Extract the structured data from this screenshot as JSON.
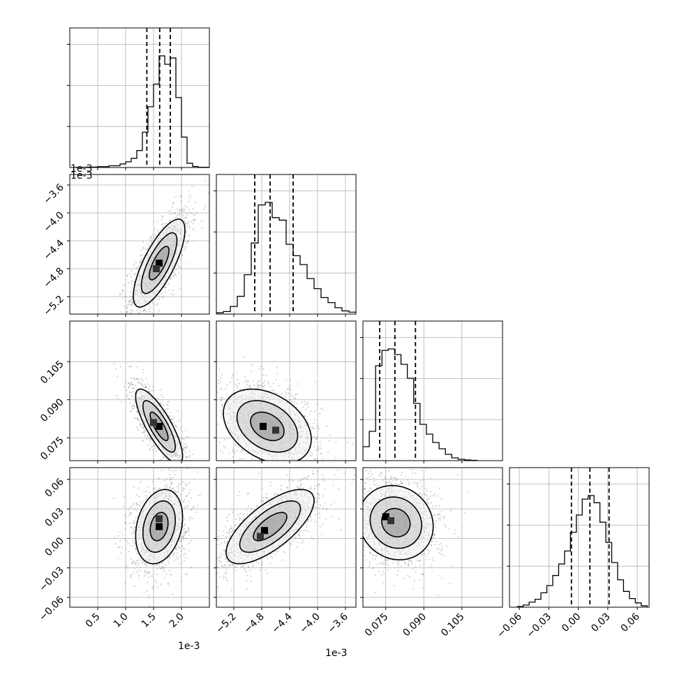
{
  "chart_data": {
    "type": "corner",
    "offset_labels": {
      "p0_hist": "1e-3",
      "p0_x": "1e-3",
      "p1_y": "1e-3",
      "p1_x": "1e-3"
    },
    "parameters": [
      {
        "range": [
          0.0002,
          2.5
        ],
        "ticks": [
          0.5,
          1.0,
          1.5,
          2.0
        ],
        "tick_labels": [
          "0.5",
          "1.0",
          "1.5",
          "2.0"
        ],
        "quantiles": [
          1.38,
          1.61,
          1.8
        ],
        "bin_edges": [
          0.1,
          0.3,
          0.5,
          0.7,
          0.9,
          1.0,
          1.1,
          1.2,
          1.3,
          1.4,
          1.5,
          1.6,
          1.7,
          1.8,
          1.9,
          2.0,
          2.1,
          2.2,
          2.3,
          2.5
        ],
        "hist": [
          0.2,
          0.6,
          1.2,
          2.5,
          5,
          8,
          13,
          24,
          50,
          86,
          118,
          158,
          146,
          155,
          99,
          43,
          6,
          1.5,
          0.3
        ]
      },
      {
        "range": [
          -5.45,
          -3.45
        ],
        "ticks": [
          -5.2,
          -4.8,
          -4.4,
          -4.0,
          -3.6
        ],
        "tick_labels": [
          "−5.2",
          "−4.8",
          "−4.4",
          "−4.0",
          "−3.6"
        ],
        "quantiles": [
          -4.9,
          -4.68,
          -4.35
        ],
        "bin_edges": [
          -5.45,
          -5.35,
          -5.25,
          -5.15,
          -5.05,
          -4.95,
          -4.85,
          -4.75,
          -4.65,
          -4.55,
          -4.45,
          -4.35,
          -4.25,
          -4.15,
          -4.05,
          -3.95,
          -3.85,
          -3.75,
          -3.65,
          -3.55,
          -3.45
        ],
        "hist": [
          2,
          4,
          12,
          28,
          62,
          112,
          172,
          176,
          152,
          148,
          110,
          92,
          78,
          56,
          40,
          26,
          18,
          10,
          5,
          3
        ]
      },
      {
        "range": [
          0.066,
          0.121
        ],
        "ticks": [
          0.075,
          0.09,
          0.105
        ],
        "tick_labels": [
          "0.075",
          "0.090",
          "0.105"
        ],
        "quantiles": [
          0.0726,
          0.0786,
          0.0867
        ],
        "bin_edges": [
          0.066,
          0.0685,
          0.071,
          0.0735,
          0.076,
          0.0785,
          0.081,
          0.0835,
          0.086,
          0.0885,
          0.091,
          0.0935,
          0.096,
          0.0985,
          0.101,
          0.1035,
          0.106,
          0.1085,
          0.111
        ],
        "hist": [
          20,
          42,
          136,
          158,
          160,
          152,
          138,
          118,
          82,
          52,
          38,
          26,
          17,
          9,
          4,
          2,
          1,
          0.5
        ]
      },
      {
        "range": [
          -0.07,
          0.072
        ],
        "ticks": [
          -0.06,
          -0.03,
          0.0,
          0.03,
          0.06
        ],
        "tick_labels": [
          "−0.06",
          "−0.03",
          "0.00",
          "0.03",
          "0.06"
        ],
        "quantiles": [
          -0.007,
          0.0118,
          0.0313
        ],
        "bin_edges": [
          -0.062,
          -0.056,
          -0.05,
          -0.044,
          -0.038,
          -0.032,
          -0.026,
          -0.02,
          -0.014,
          -0.008,
          -0.002,
          0.004,
          0.01,
          0.016,
          0.022,
          0.028,
          0.034,
          0.04,
          0.046,
          0.052,
          0.058,
          0.064,
          0.07
        ],
        "hist": [
          1,
          3,
          7,
          11,
          20,
          30,
          44,
          60,
          78,
          104,
          128,
          150,
          155,
          145,
          118,
          90,
          62,
          38,
          22,
          12,
          6,
          2
        ]
      }
    ],
    "pairs": [
      {
        "row": 1,
        "col": 0,
        "center": [
          1.6,
          -4.72
        ],
        "sd": [
          0.22,
          0.3
        ],
        "rho": 0.75,
        "dense_cells": [
          [
            1.6,
            -4.72
          ],
          [
            1.55,
            -4.8
          ]
        ]
      },
      {
        "row": 2,
        "col": 0,
        "center": [
          1.6,
          0.0795
        ],
        "sd": [
          0.2,
          0.007
        ],
        "rho": -0.8,
        "dense_cells": [
          [
            1.6,
            0.0795
          ],
          [
            1.5,
            0.081
          ]
        ]
      },
      {
        "row": 2,
        "col": 1,
        "center": [
          -4.72,
          0.0795
        ],
        "sd": [
          0.3,
          0.007
        ],
        "rho": -0.35,
        "dense_cells": [
          [
            -4.78,
            0.0795
          ],
          [
            -4.6,
            0.078
          ]
        ]
      },
      {
        "row": 3,
        "col": 0,
        "center": [
          1.6,
          0.012
        ],
        "sd": [
          0.2,
          0.018
        ],
        "rho": 0.25,
        "dense_cells": [
          [
            1.6,
            0.012
          ],
          [
            1.6,
            0.02
          ]
        ]
      },
      {
        "row": 3,
        "col": 1,
        "center": [
          -4.68,
          0.012
        ],
        "sd": [
          0.3,
          0.018
        ],
        "rho": 0.7,
        "dense_cells": [
          [
            -4.76,
            0.008
          ],
          [
            -4.82,
            0.002
          ]
        ]
      },
      {
        "row": 3,
        "col": 2,
        "center": [
          0.079,
          0.016
        ],
        "sd": [
          0.007,
          0.018
        ],
        "rho": -0.1,
        "dense_cells": [
          [
            0.075,
            0.022
          ],
          [
            0.077,
            0.018
          ]
        ]
      }
    ]
  }
}
